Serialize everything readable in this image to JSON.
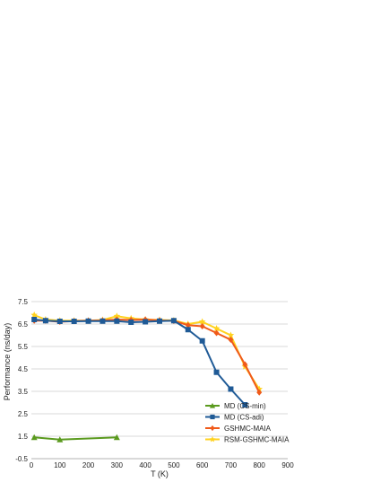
{
  "chart_data": {
    "type": "line",
    "title": "",
    "xlabel": "T (K)",
    "ylabel": "Performance (ns/day)",
    "xlim": [
      0,
      900
    ],
    "ylim": [
      -0.5,
      7.5
    ],
    "xticks": [
      "0",
      "100",
      "200",
      "300",
      "400",
      "500",
      "600",
      "700",
      "800",
      "900"
    ],
    "yticks": [
      "-0.5",
      "1.5",
      "2.5",
      "3.5",
      "4.5",
      "5.5",
      "6.5",
      "7.5"
    ],
    "grid": true,
    "legend_position": "bottom-right",
    "series": [
      {
        "name": "MD (CS-min)",
        "color": "#5a9a1e",
        "marker": "triangle",
        "x": [
          10,
          100,
          300
        ],
        "y": [
          1.4,
          1.2,
          1.4
        ]
      },
      {
        "name": "MD (CS-adi)",
        "color": "#1f5a96",
        "marker": "square",
        "x": [
          10,
          50,
          100,
          150,
          200,
          250,
          300,
          350,
          400,
          450,
          500,
          550,
          600,
          650,
          700,
          750
        ],
        "y": [
          6.7,
          6.65,
          6.62,
          6.62,
          6.63,
          6.63,
          6.63,
          6.58,
          6.6,
          6.63,
          6.65,
          6.25,
          5.75,
          4.35,
          3.6,
          2.9
        ]
      },
      {
        "name": "GSHMC-MAIA",
        "color": "#f05a1a",
        "marker": "diamond",
        "x": [
          10,
          50,
          100,
          150,
          200,
          250,
          300,
          350,
          400,
          450,
          500,
          550,
          600,
          650,
          700,
          750,
          800
        ],
        "y": [
          6.65,
          6.65,
          6.6,
          6.63,
          6.65,
          6.66,
          6.7,
          6.68,
          6.7,
          6.66,
          6.64,
          6.45,
          6.4,
          6.1,
          5.8,
          4.7,
          3.45
        ]
      },
      {
        "name": "RSM-GSHMC-MAIA",
        "color": "#ffd21e",
        "marker": "star",
        "x": [
          10,
          50,
          100,
          150,
          200,
          250,
          300,
          350,
          400,
          450,
          500,
          550,
          600,
          650,
          700,
          750,
          800
        ],
        "y": [
          6.9,
          6.7,
          6.65,
          6.65,
          6.65,
          6.68,
          6.85,
          6.75,
          6.7,
          6.68,
          6.66,
          6.5,
          6.6,
          6.3,
          6.0,
          4.6,
          3.6
        ]
      }
    ]
  }
}
